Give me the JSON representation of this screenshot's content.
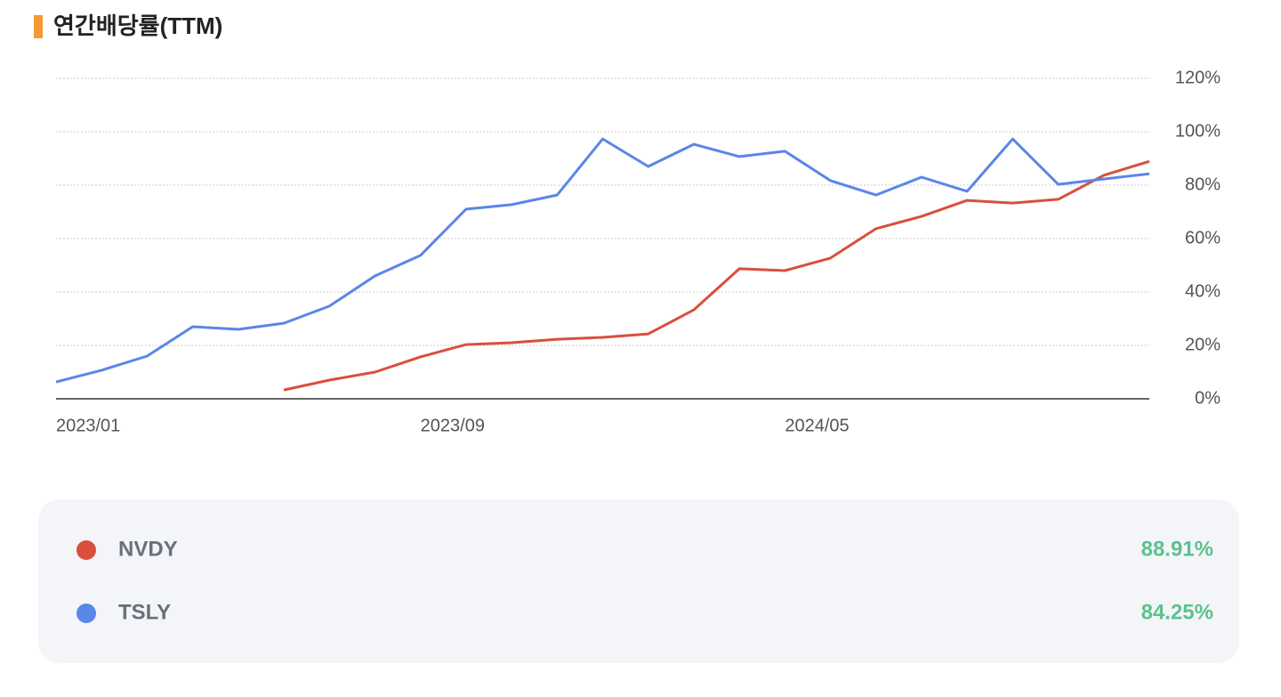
{
  "chart_data": {
    "type": "line",
    "title": "연간배당률(TTM)",
    "categories": [
      "2023/01",
      null,
      null,
      null,
      null,
      null,
      null,
      null,
      "2023/09",
      null,
      null,
      null,
      null,
      null,
      null,
      null,
      "2024/05",
      null,
      null,
      null,
      null,
      null,
      null,
      null,
      null
    ],
    "series": [
      {
        "name": "NVDY",
        "color": "#d94f3d",
        "latest_label": "88.91%",
        "values": [
          null,
          null,
          null,
          null,
          null,
          3.3,
          7,
          10,
          15.7,
          20.3,
          21,
          22.3,
          23,
          24.3,
          33.3,
          48.7,
          48,
          52.7,
          63.7,
          68.3,
          74.3,
          73.3,
          74.7,
          83.7,
          88.91
        ]
      },
      {
        "name": "TSLY",
        "color": "#5a86e8",
        "latest_label": "84.25%",
        "values": [
          6.3,
          10.7,
          16,
          27,
          26,
          28.3,
          34.7,
          46,
          53.7,
          71,
          72.7,
          76.3,
          97.3,
          87,
          95.3,
          90.7,
          92.7,
          81.7,
          76.3,
          83,
          77.7,
          97.3,
          80.3,
          82.3,
          84.25
        ]
      }
    ],
    "ylim": [
      0,
      120
    ],
    "yticks": [
      {
        "value": 0,
        "label": "0%"
      },
      {
        "value": 20,
        "label": "20%"
      },
      {
        "value": 40,
        "label": "40%"
      },
      {
        "value": 60,
        "label": "60%"
      },
      {
        "value": 80,
        "label": "80%"
      },
      {
        "value": 100,
        "label": "100%"
      },
      {
        "value": 120,
        "label": "120%"
      }
    ],
    "grid": true
  }
}
